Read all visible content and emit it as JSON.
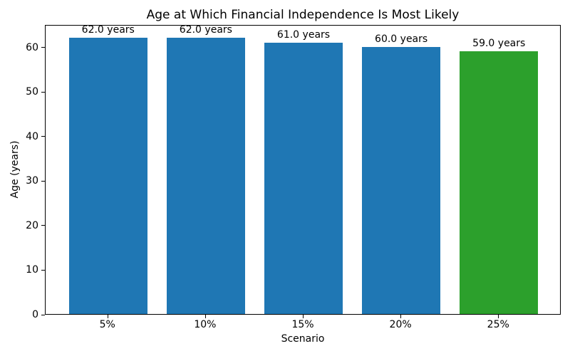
{
  "chart_data": {
    "type": "bar",
    "title": "Age at Which Financial Independence Is Most Likely",
    "xlabel": "Scenario",
    "ylabel": "Age (years)",
    "categories": [
      "5%",
      "10%",
      "15%",
      "20%",
      "25%"
    ],
    "values": [
      62.0,
      62.0,
      61.0,
      60.0,
      59.0
    ],
    "bar_labels": [
      "62.0 years",
      "62.0 years",
      "61.0 years",
      "60.0 years",
      "59.0 years"
    ],
    "bar_colors": [
      "#1f77b4",
      "#1f77b4",
      "#1f77b4",
      "#1f77b4",
      "#2ca02c"
    ],
    "highlight_color": "#2ca02c",
    "default_bar_color": "#1f77b4",
    "yticks": [
      0,
      10,
      20,
      30,
      40,
      50,
      60
    ],
    "ylim": [
      0,
      65.1
    ],
    "grid": false,
    "legend": null,
    "background_color": "#ffffff",
    "text_color": "#000000"
  }
}
